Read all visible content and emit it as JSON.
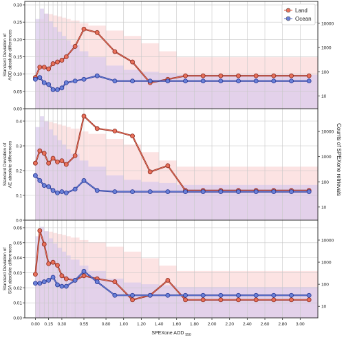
{
  "chart_data": {
    "type": "line",
    "x_axis": {
      "label": "SPEXone AOD",
      "label_sub": "550",
      "ticks": [
        0.0,
        0.15,
        0.3,
        0.55,
        0.8,
        1.0,
        1.2,
        1.4,
        1.6,
        1.8,
        2.0,
        2.2,
        2.4,
        2.6,
        2.8,
        3.0
      ],
      "tick_labels": [
        "0.00",
        "0.15",
        "0.30",
        "0.55",
        "0.80",
        "1.00",
        "1.20",
        "1.40",
        "1.60",
        "1.80",
        "2.00",
        "2.20",
        "2.40",
        "2.60",
        "2.80",
        "3.00"
      ],
      "range": [
        -0.12,
        3.2
      ]
    },
    "right_axis": {
      "label": "Counts of SPEXone retrievals",
      "scale": "log",
      "ticks": [
        10,
        100,
        1000,
        10000
      ],
      "range": [
        3,
        80000
      ]
    },
    "legend": {
      "position": "top-right",
      "entries": [
        {
          "name": "Land",
          "color": "#e8705a"
        },
        {
          "name": "Ocean",
          "color": "#6a80d8"
        }
      ]
    },
    "colors": {
      "land": "#e8705a",
      "ocean": "#6a80d8",
      "land_bar": "#fcdede",
      "ocean_bar": "#d8c9ec",
      "land_line": "#8a2b20",
      "ocean_line": "#253592"
    },
    "x": [
      0.0,
      0.05,
      0.1,
      0.15,
      0.2,
      0.25,
      0.3,
      0.35,
      0.45,
      0.55,
      0.7,
      0.9,
      1.1,
      1.3,
      1.5,
      1.7,
      1.9,
      2.1,
      2.3,
      2.5,
      2.7,
      2.9,
      3.1
    ],
    "bars": {
      "edges": [
        0.0,
        0.05,
        0.1,
        0.15,
        0.2,
        0.25,
        0.3,
        0.35,
        0.4,
        0.5,
        0.6,
        0.8,
        1.0,
        1.2,
        1.4,
        1.6,
        3.2
      ],
      "land_counts": [
        2000,
        15000,
        25000,
        24000,
        21000,
        19000,
        17000,
        15000,
        13000,
        10000,
        8000,
        5000,
        3000,
        1500,
        700,
        400
      ],
      "ocean_counts": [
        15000,
        40000,
        25000,
        12000,
        7000,
        4500,
        3000,
        2000,
        1300,
        700,
        400,
        180,
        120,
        100,
        90,
        75
      ]
    },
    "panels": [
      {
        "ylabel": "Standard Deviation of\nAOD absolute differences",
        "ylim": [
          0,
          0.31
        ],
        "yticks": [
          0.0,
          0.05,
          0.1,
          0.15,
          0.2,
          0.25,
          0.3
        ],
        "ytick_labels": [
          "0.00",
          "0.05",
          "0.10",
          "0.15",
          "0.20",
          "0.25",
          "0.30"
        ],
        "series": [
          {
            "name": "Land",
            "values": [
              0.09,
              0.12,
              0.12,
              0.115,
              0.13,
              0.135,
              0.14,
              0.15,
              0.18,
              0.23,
              0.22,
              0.165,
              0.135,
              0.075,
              0.085,
              0.095,
              0.095,
              0.095,
              0.095,
              0.095,
              0.095,
              0.095,
              0.095
            ]
          },
          {
            "name": "Ocean",
            "values": [
              0.085,
              0.09,
              0.075,
              0.07,
              0.055,
              0.055,
              0.06,
              0.075,
              0.08,
              0.085,
              0.095,
              0.08,
              0.08,
              0.08,
              0.08,
              0.08,
              0.08,
              0.08,
              0.08,
              0.08,
              0.08,
              0.08,
              0.08
            ]
          }
        ]
      },
      {
        "ylabel": "Standard Deviation of\nAE absolute differences",
        "ylim": [
          0,
          0.45
        ],
        "yticks": [
          0.0,
          0.1,
          0.2,
          0.3,
          0.4
        ],
        "ytick_labels": [
          "0.0",
          "0.1",
          "0.2",
          "0.3",
          "0.4"
        ],
        "series": [
          {
            "name": "Land",
            "values": [
              0.23,
              0.28,
              0.27,
              0.23,
              0.25,
              0.235,
              0.24,
              0.225,
              0.26,
              0.42,
              0.37,
              0.36,
              0.34,
              0.195,
              0.22,
              0.12,
              0.12,
              0.12,
              0.12,
              0.12,
              0.12,
              0.12,
              0.12
            ]
          },
          {
            "name": "Ocean",
            "values": [
              0.18,
              0.16,
              0.14,
              0.135,
              0.12,
              0.11,
              0.115,
              0.11,
              0.125,
              0.16,
              0.12,
              0.115,
              0.115,
              0.115,
              0.115,
              0.115,
              0.115,
              0.115,
              0.115,
              0.115,
              0.115,
              0.115,
              0.115
            ]
          }
        ]
      },
      {
        "ylabel": "Standard Deviation of\nSSA absolute differences",
        "ylim": [
          0,
          0.065
        ],
        "yticks": [
          0.0,
          0.01,
          0.02,
          0.03,
          0.04,
          0.05,
          0.06
        ],
        "ytick_labels": [
          "0.00",
          "0.01",
          "0.02",
          "0.03",
          "0.04",
          "0.05",
          "0.06"
        ],
        "series": [
          {
            "name": "Land",
            "values": [
              0.029,
              0.058,
              0.049,
              0.036,
              0.037,
              0.035,
              0.028,
              0.026,
              0.025,
              0.028,
              0.026,
              0.024,
              0.012,
              0.015,
              0.025,
              0.012,
              0.012,
              0.012,
              0.012,
              0.012,
              0.012,
              0.012,
              0.012
            ]
          },
          {
            "name": "Ocean",
            "values": [
              0.023,
              0.023,
              0.024,
              0.025,
              0.027,
              0.022,
              0.021,
              0.021,
              0.025,
              0.031,
              0.024,
              0.015,
              0.015,
              0.015,
              0.015,
              0.015,
              0.015,
              0.015,
              0.015,
              0.015,
              0.015,
              0.015,
              0.015
            ]
          }
        ]
      }
    ]
  }
}
